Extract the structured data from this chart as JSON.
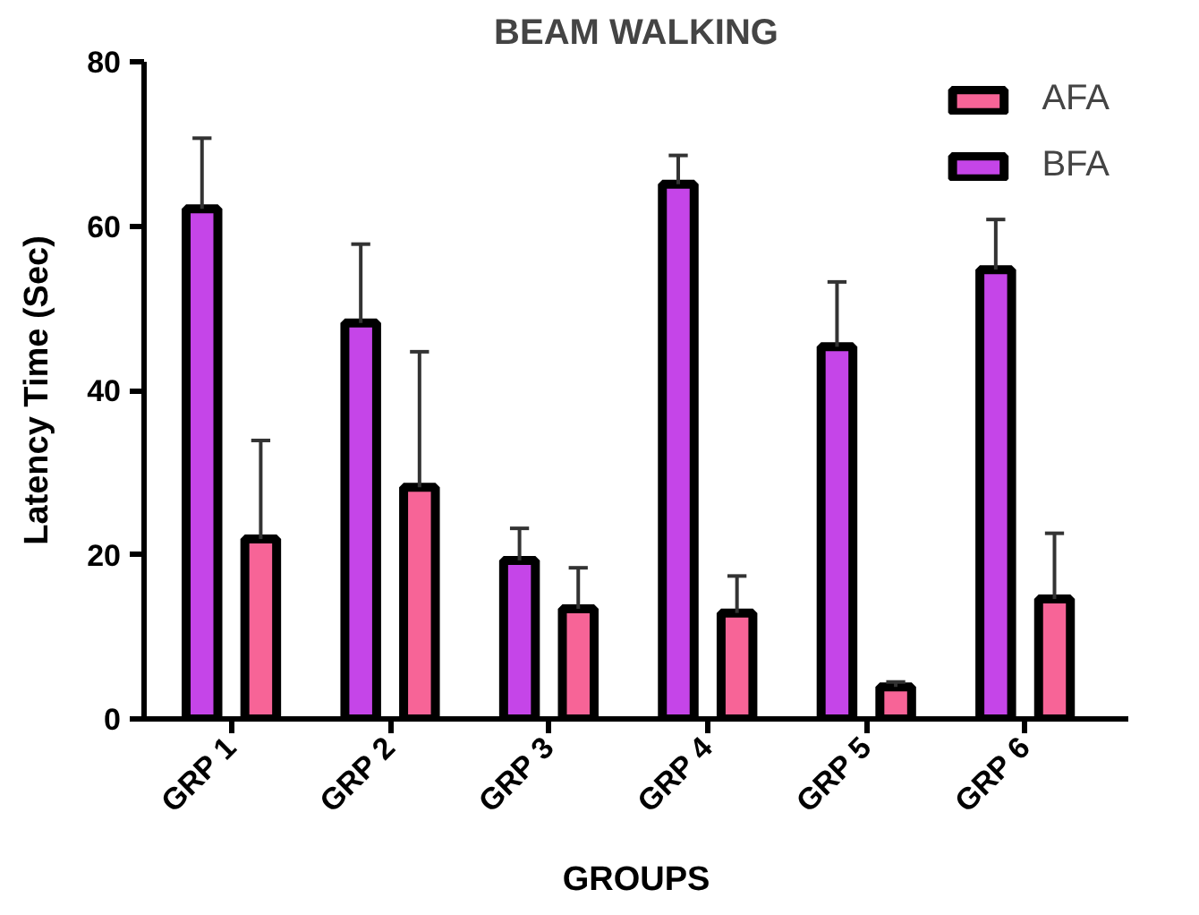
{
  "chart_data": {
    "type": "bar",
    "title": "BEAM WALKING",
    "xlabel": "GROUPS",
    "ylabel": "Latency Time (Sec)",
    "categories": [
      "GRP 1",
      "GRP 2",
      "GRP 3",
      "GRP 4",
      "GRP 5",
      "GRP 6"
    ],
    "series": [
      {
        "name": "BFA",
        "color": "#c545e8",
        "values": [
          62.1,
          48.2,
          19.3,
          65.1,
          45.3,
          54.7
        ],
        "errors": [
          [
            62.1,
            70.7
          ],
          [
            48.2,
            57.8
          ],
          [
            19.3,
            23.2
          ],
          [
            65.1,
            68.6
          ],
          [
            45.3,
            53.2
          ],
          [
            54.7,
            60.8
          ]
        ]
      },
      {
        "name": "AFA",
        "color": "#f76497",
        "values": [
          21.9,
          28.2,
          13.4,
          12.9,
          3.9,
          14.6
        ],
        "errors": [
          [
            21.9,
            33.9
          ],
          [
            28.2,
            44.7
          ],
          [
            13.4,
            18.4
          ],
          [
            12.9,
            17.4
          ],
          [
            3.9,
            4.5
          ],
          [
            14.6,
            22.6
          ]
        ]
      }
    ],
    "ylim": [
      0,
      80
    ],
    "yticks": [
      0,
      20,
      40,
      60,
      80
    ],
    "grid": false,
    "legend": "top right"
  }
}
